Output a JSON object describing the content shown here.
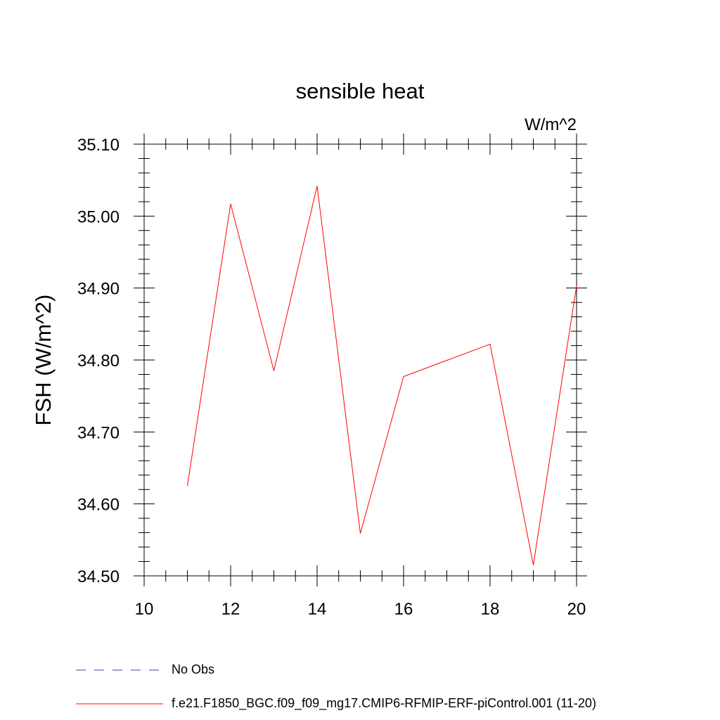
{
  "chart_data": {
    "type": "line",
    "title": "sensible heat",
    "units": "W/m^2",
    "ylabel": "FSH  (W/m^2)",
    "xlabel": "",
    "xlim": [
      10,
      20
    ],
    "ylim": [
      34.5,
      35.1
    ],
    "x_ticks": [
      "10",
      "12",
      "14",
      "16",
      "18",
      "20"
    ],
    "y_ticks": [
      "34.50",
      "34.60",
      "34.70",
      "34.80",
      "34.90",
      "35.00",
      "35.10"
    ],
    "x_tick_values": [
      10,
      12,
      14,
      16,
      18,
      20
    ],
    "y_tick_values": [
      34.5,
      34.6,
      34.7,
      34.8,
      34.9,
      35.0,
      35.1
    ],
    "series": [
      {
        "name": "f.e21.F1850_BGC.f09_f09_mg17.CMIP6-RFMIP-ERF-piControl.001 (11-20)",
        "color": "#ff0000",
        "x": [
          11,
          12,
          13,
          14,
          15,
          16,
          18,
          19,
          20
        ],
        "y": [
          34.625,
          35.017,
          34.785,
          35.042,
          34.559,
          34.777,
          34.822,
          34.515,
          34.903
        ]
      }
    ],
    "legend": [
      {
        "label": "No Obs",
        "color": "#4040a0",
        "style": "dashed"
      },
      {
        "label": "f.e21.F1850_BGC.f09_f09_mg17.CMIP6-RFMIP-ERF-piControl.001 (11-20)",
        "color": "#ff0000",
        "style": "solid"
      }
    ],
    "legend_placement": "bottom"
  }
}
